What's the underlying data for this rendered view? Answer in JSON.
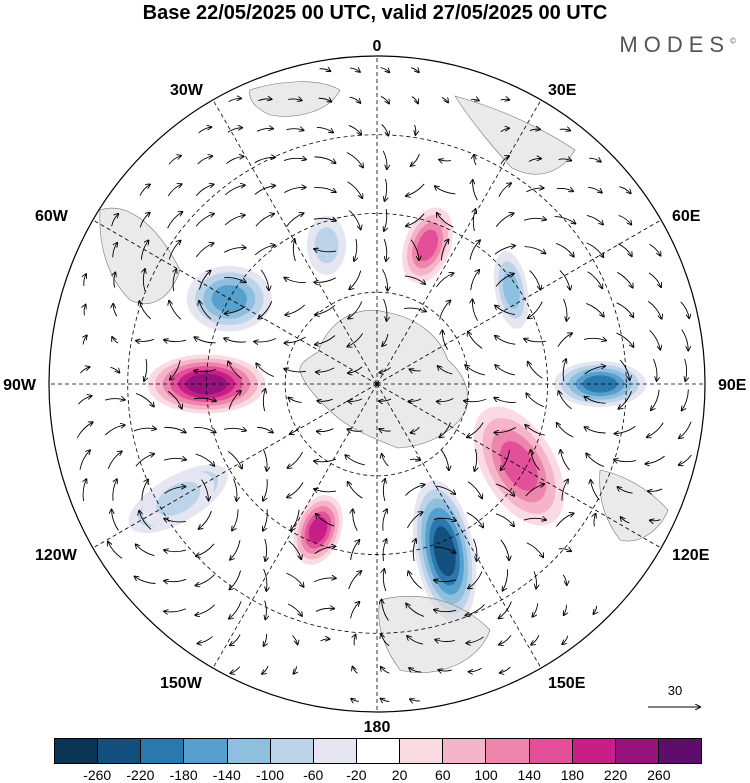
{
  "title": "Base 22/05/2025 00 UTC, valid 27/05/2025 00 UTC",
  "brand": "MODES",
  "brand_mark": "©",
  "longitude_labels": {
    "top": "0",
    "right": "90E",
    "bottom": "180",
    "left": "90W",
    "ne30": "30E",
    "ne60": "60E",
    "se120": "120E",
    "se150": "150E",
    "sw150": "150W",
    "sw120": "120W",
    "nw60": "60W",
    "nw30": "30W"
  },
  "vector_ref_label": "30",
  "colorbar": {
    "colors": [
      "#0b3556",
      "#14507e",
      "#2b78ae",
      "#579fcc",
      "#8fbfdf",
      "#bcd3ea",
      "#e6e6f2",
      "#ffffff",
      "#fbdbe3",
      "#f5b4c8",
      "#ee85ad",
      "#e34f98",
      "#c71e87",
      "#96137d",
      "#5e0d6c"
    ],
    "ticks": [
      "-260",
      "-220",
      "-180",
      "-140",
      "-100",
      "-60",
      "-20",
      "20",
      "60",
      "100",
      "140",
      "180",
      "220",
      "260"
    ]
  },
  "anomalies": [
    {
      "lon": -120,
      "r": 0.7,
      "rx": 0.17,
      "ry": 0.07,
      "rot": -30,
      "v": -140
    },
    {
      "lon": -90,
      "r": 0.52,
      "rx": 0.18,
      "ry": 0.09,
      "rot": 0,
      "v": 240
    },
    {
      "lon": -60,
      "r": 0.52,
      "rx": 0.13,
      "ry": 0.1,
      "rot": 0,
      "v": -160
    },
    {
      "lon": -20,
      "r": 0.45,
      "rx": 0.06,
      "ry": 0.09,
      "rot": 0,
      "v": -80
    },
    {
      "lon": 20,
      "r": 0.45,
      "rx": 0.07,
      "ry": 0.12,
      "rot": 20,
      "v": 160
    },
    {
      "lon": 55,
      "r": 0.5,
      "rx": 0.05,
      "ry": 0.12,
      "rot": -10,
      "v": -100
    },
    {
      "lon": 90,
      "r": 0.68,
      "rx": 0.14,
      "ry": 0.07,
      "rot": 0,
      "v": -180
    },
    {
      "lon": 120,
      "r": 0.5,
      "rx": 0.11,
      "ry": 0.2,
      "rot": -30,
      "v": 160
    },
    {
      "lon": 158,
      "r": 0.55,
      "rx": 0.09,
      "ry": 0.22,
      "rot": -10,
      "v": -220
    },
    {
      "lon": -158,
      "r": 0.48,
      "rx": 0.07,
      "ry": 0.11,
      "rot": 20,
      "v": 200
    },
    {
      "lon": -120,
      "r": 0.7,
      "rx": 0.12,
      "ry": 0.07,
      "rot": -30,
      "v": -60
    }
  ]
}
